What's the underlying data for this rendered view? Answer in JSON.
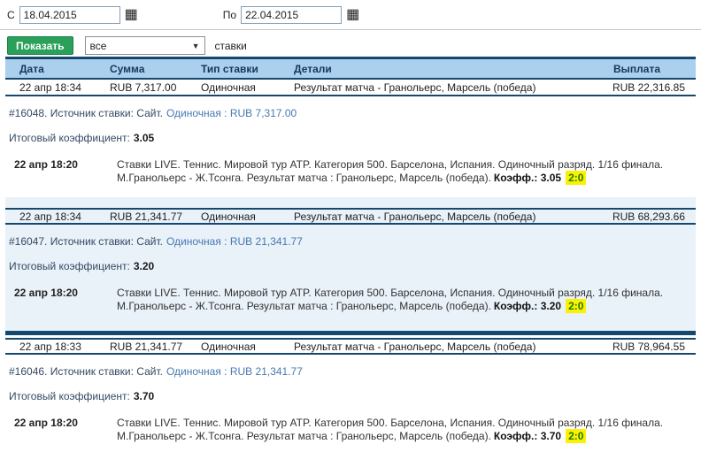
{
  "colors": {
    "accent_navy": "#15486f",
    "header_bg": "#abd0ee",
    "header_text": "#17365d",
    "alt_record_bg": "#e9f1f9",
    "link_blue": "#4779b2",
    "button_green": "#2aa05a",
    "score_highlight_bg": "#fdf102",
    "score_text_green": "#1c7c00"
  },
  "filters": {
    "from_label": "С",
    "from_value": "18.04.2015",
    "to_label": "По",
    "to_value": "22.04.2015",
    "calendar_icon": "▦",
    "show_button": "Показать",
    "select_value": "все",
    "select_arrow": "▼",
    "suffix": "ставки"
  },
  "table": {
    "columns": [
      "Дата",
      "Сумма",
      "Тип ставки",
      "Детали",
      "Выплата"
    ]
  },
  "records": [
    {
      "date": "22 апр 18:34",
      "amount": "RUB 7,317.00",
      "bet_type": "Одиночная",
      "details": "Результат матча - Гранольерс, Марсель (победа)",
      "payout": "RUB 22,316.85",
      "source_text": "#16048. Источник ставки: Сайт.",
      "source_link": "Одиночная : RUB 7,317.00",
      "total_coeff_label": "Итоговый коэффициент:",
      "total_coeff": "3.05",
      "event_date": "22 апр 18:20",
      "event_line1": "Ставки LIVE. Теннис. Мировой тур ATP. Категория 500. Барселона, Испания. Одиночный разряд. 1/16 финала.",
      "event_line2": "М.Гранольерс - Ж.Тсонга. Результат матча : Гранольерс, Марсель (победа).",
      "coeff_text": "Коэфф.: 3.05",
      "score": "2:0"
    },
    {
      "date": "22 апр 18:34",
      "amount": "RUB 21,341.77",
      "bet_type": "Одиночная",
      "details": "Результат матча - Гранольерс, Марсель (победа)",
      "payout": "RUB 68,293.66",
      "source_text": "#16047. Источник ставки: Сайт.",
      "source_link": "Одиночная : RUB 21,341.77",
      "total_coeff_label": "Итоговый коэффициент:",
      "total_coeff": "3.20",
      "event_date": "22 апр 18:20",
      "event_line1": "Ставки LIVE. Теннис. Мировой тур ATP. Категория 500. Барселона, Испания. Одиночный разряд. 1/16 финала.",
      "event_line2": "М.Гранольерс - Ж.Тсонга. Результат матча : Гранольерс, Марсель (победа).",
      "coeff_text": "Коэфф.: 3.20",
      "score": "2:0"
    },
    {
      "date": "22 апр 18:33",
      "amount": "RUB 21,341.77",
      "bet_type": "Одиночная",
      "details": "Результат матча - Гранольерс, Марсель (победа)",
      "payout": "RUB 78,964.55",
      "source_text": "#16046. Источник ставки: Сайт.",
      "source_link": "Одиночная : RUB 21,341.77",
      "total_coeff_label": "Итоговый коэффициент:",
      "total_coeff": "3.70",
      "event_date": "22 апр 18:20",
      "event_line1": "Ставки LIVE. Теннис. Мировой тур ATP. Категория 500. Барселона, Испания. Одиночный разряд. 1/16 финала.",
      "event_line2": "М.Гранольерс - Ж.Тсонга. Результат матча : Гранольерс, Марсель (победа).",
      "coeff_text": "Коэфф.: 3.70",
      "score": "2:0"
    }
  ]
}
